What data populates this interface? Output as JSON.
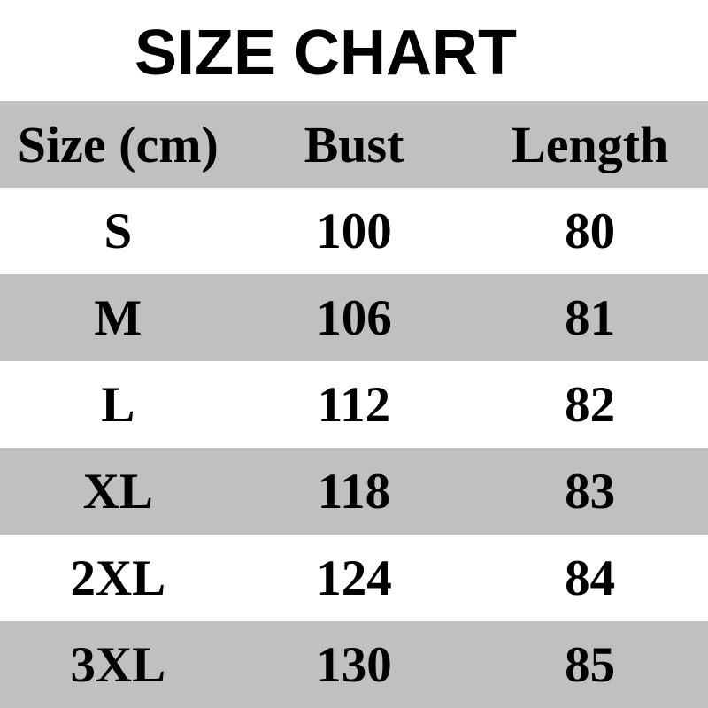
{
  "title": "SIZE CHART",
  "chart_data": {
    "type": "table",
    "title": "SIZE CHART",
    "unit": "cm",
    "columns": [
      "Size (cm)",
      "Bust",
      "Length"
    ],
    "rows": [
      [
        "S",
        "100",
        "80"
      ],
      [
        "M",
        "106",
        "81"
      ],
      [
        "L",
        "112",
        "82"
      ],
      [
        "XL",
        "118",
        "83"
      ],
      [
        "2XL",
        "124",
        "84"
      ],
      [
        "3XL",
        "130",
        "85"
      ]
    ]
  },
  "colors": {
    "header_row": "#c0c0c0",
    "alt_row": "#c0c0c0",
    "plain_row": "#ffffff",
    "text": "#000000"
  }
}
